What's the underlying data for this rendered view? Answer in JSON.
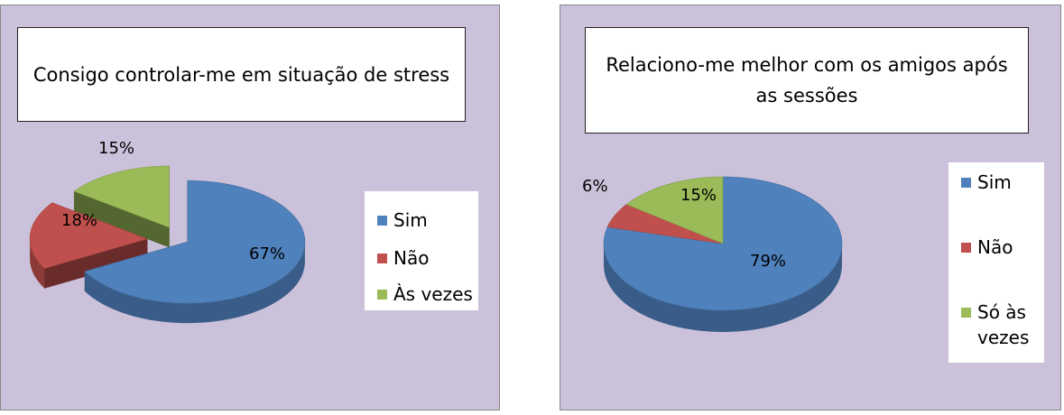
{
  "chart_data": [
    {
      "type": "pie",
      "title": "Consigo controlar-me em situação de stress",
      "exploded": true,
      "legend_position": "right",
      "categories": [
        "Sim",
        "Não",
        "Às vezes"
      ],
      "values": [
        67,
        18,
        15
      ],
      "data_labels": [
        "67%",
        "18%",
        "15%"
      ],
      "colors": [
        "#4f81bd",
        "#c0504d",
        "#9bbb59"
      ]
    },
    {
      "type": "pie",
      "title": "Relaciono-me melhor com os amigos após as sessões",
      "exploded": false,
      "legend_position": "right",
      "categories": [
        "Sim",
        "Não",
        "Só às vezes"
      ],
      "values": [
        79,
        6,
        15
      ],
      "data_labels": [
        "79%",
        "6%",
        "15%"
      ],
      "colors": [
        "#4f81bd",
        "#c0504d",
        "#9bbb59"
      ]
    }
  ]
}
